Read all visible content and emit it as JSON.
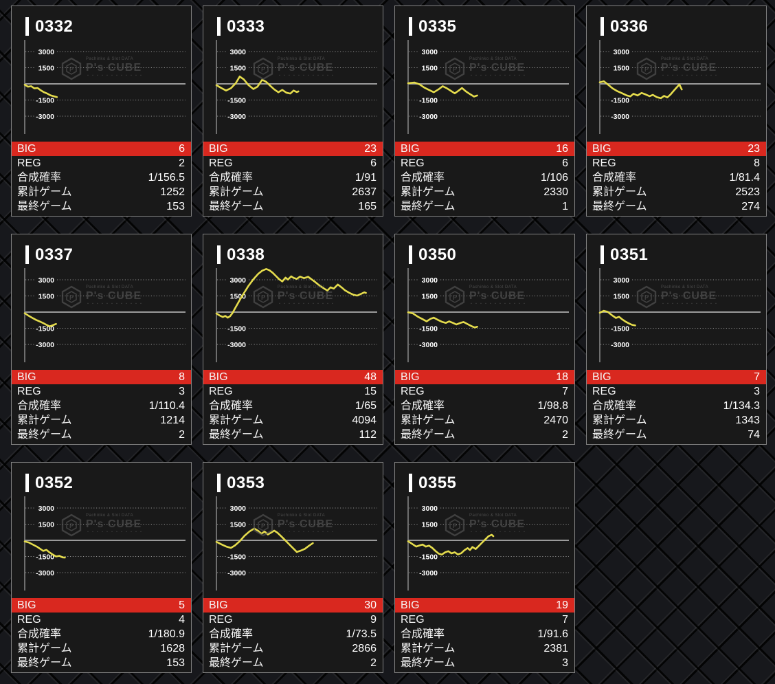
{
  "labels": {
    "big": "BIG",
    "reg": "REG",
    "combined_rate": "合成確率",
    "total_games": "累計ゲーム",
    "last_game": "最終ゲーム"
  },
  "watermark": {
    "tagline": "Pachinko & Slot DATA",
    "brand": "P's CUBE",
    "subline": "・・・・・・・・・・・・"
  },
  "colors": {
    "big_row_red": "#d9281f",
    "graph_line_yellow": "#e5dc4d",
    "grid_gray": "#9a9a9a",
    "axis_gray": "#8b8b8b",
    "card_bg": "#191919"
  },
  "axis": {
    "ticks": [
      3000,
      1500,
      -1500,
      -3000
    ],
    "value_range": [
      -4500,
      4500
    ]
  },
  "machines": [
    {
      "id": "0332",
      "big": 6,
      "reg": 2,
      "combined": "1/156.5",
      "total": 1252,
      "last": 153,
      "series": [
        [
          0,
          -80
        ],
        [
          0.02,
          -260
        ],
        [
          0.04,
          -220
        ],
        [
          0.06,
          -420
        ],
        [
          0.08,
          -380
        ],
        [
          0.1,
          -600
        ],
        [
          0.12,
          -780
        ],
        [
          0.14,
          -900
        ],
        [
          0.16,
          -1060
        ],
        [
          0.18,
          -1150
        ],
        [
          0.2,
          -1230
        ]
      ]
    },
    {
      "id": "0333",
      "big": 23,
      "reg": 6,
      "combined": "1/91",
      "total": 2637,
      "last": 165,
      "series": [
        [
          0,
          -120
        ],
        [
          0.03,
          -380
        ],
        [
          0.06,
          -620
        ],
        [
          0.09,
          -400
        ],
        [
          0.12,
          60
        ],
        [
          0.145,
          680
        ],
        [
          0.17,
          420
        ],
        [
          0.2,
          -120
        ],
        [
          0.23,
          -480
        ],
        [
          0.255,
          -260
        ],
        [
          0.285,
          380
        ],
        [
          0.31,
          180
        ],
        [
          0.335,
          -180
        ],
        [
          0.36,
          -520
        ],
        [
          0.385,
          -780
        ],
        [
          0.41,
          -560
        ],
        [
          0.435,
          -820
        ],
        [
          0.46,
          -900
        ],
        [
          0.48,
          -620
        ],
        [
          0.5,
          -760
        ],
        [
          0.51,
          -700
        ]
      ]
    },
    {
      "id": "0335",
      "big": 16,
      "reg": 6,
      "combined": "1/106",
      "total": 2330,
      "last": 1,
      "series": [
        [
          0,
          60
        ],
        [
          0.04,
          120
        ],
        [
          0.07,
          -40
        ],
        [
          0.1,
          -340
        ],
        [
          0.13,
          -560
        ],
        [
          0.16,
          -780
        ],
        [
          0.19,
          -500
        ],
        [
          0.215,
          -220
        ],
        [
          0.24,
          -400
        ],
        [
          0.265,
          -640
        ],
        [
          0.29,
          -880
        ],
        [
          0.315,
          -620
        ],
        [
          0.335,
          -380
        ],
        [
          0.36,
          -700
        ],
        [
          0.385,
          -950
        ],
        [
          0.41,
          -1180
        ],
        [
          0.43,
          -1080
        ]
      ]
    },
    {
      "id": "0336",
      "big": 23,
      "reg": 8,
      "combined": "1/81.4",
      "total": 2523,
      "last": 274,
      "series": [
        [
          0,
          140
        ],
        [
          0.025,
          240
        ],
        [
          0.05,
          -60
        ],
        [
          0.08,
          -420
        ],
        [
          0.11,
          -680
        ],
        [
          0.14,
          -880
        ],
        [
          0.165,
          -1060
        ],
        [
          0.19,
          -1160
        ],
        [
          0.21,
          -920
        ],
        [
          0.235,
          -1080
        ],
        [
          0.26,
          -840
        ],
        [
          0.285,
          -980
        ],
        [
          0.31,
          -1140
        ],
        [
          0.33,
          -1020
        ],
        [
          0.355,
          -1240
        ],
        [
          0.38,
          -1330
        ],
        [
          0.4,
          -1120
        ],
        [
          0.42,
          -1260
        ],
        [
          0.44,
          -980
        ],
        [
          0.46,
          -640
        ],
        [
          0.48,
          -300
        ],
        [
          0.495,
          -60
        ],
        [
          0.51,
          -520
        ]
      ]
    },
    {
      "id": "0337",
      "big": 8,
      "reg": 3,
      "combined": "1/110.4",
      "total": 1214,
      "last": 2,
      "series": [
        [
          0,
          -100
        ],
        [
          0.02,
          -300
        ],
        [
          0.045,
          -520
        ],
        [
          0.07,
          -720
        ],
        [
          0.095,
          -880
        ],
        [
          0.115,
          -1020
        ],
        [
          0.135,
          -1180
        ],
        [
          0.155,
          -1330
        ],
        [
          0.175,
          -1220
        ],
        [
          0.195,
          -1100
        ]
      ]
    },
    {
      "id": "0338",
      "big": 48,
      "reg": 15,
      "combined": "1/65",
      "total": 4094,
      "last": 112,
      "series": [
        [
          0,
          -120
        ],
        [
          0.02,
          -320
        ],
        [
          0.04,
          -460
        ],
        [
          0.055,
          -360
        ],
        [
          0.07,
          -520
        ],
        [
          0.085,
          -380
        ],
        [
          0.1,
          -80
        ],
        [
          0.125,
          600
        ],
        [
          0.15,
          1250
        ],
        [
          0.175,
          1850
        ],
        [
          0.2,
          2450
        ],
        [
          0.23,
          3050
        ],
        [
          0.26,
          3550
        ],
        [
          0.285,
          3850
        ],
        [
          0.31,
          4000
        ],
        [
          0.33,
          3880
        ],
        [
          0.35,
          3650
        ],
        [
          0.37,
          3350
        ],
        [
          0.39,
          3050
        ],
        [
          0.41,
          2850
        ],
        [
          0.43,
          3200
        ],
        [
          0.445,
          3020
        ],
        [
          0.465,
          3320
        ],
        [
          0.48,
          3180
        ],
        [
          0.5,
          3080
        ],
        [
          0.52,
          3300
        ],
        [
          0.545,
          3150
        ],
        [
          0.57,
          3280
        ],
        [
          0.59,
          3060
        ],
        [
          0.61,
          2850
        ],
        [
          0.63,
          2600
        ],
        [
          0.65,
          2380
        ],
        [
          0.67,
          2180
        ],
        [
          0.69,
          2000
        ],
        [
          0.71,
          2300
        ],
        [
          0.73,
          2180
        ],
        [
          0.755,
          2560
        ],
        [
          0.78,
          2280
        ],
        [
          0.8,
          2020
        ],
        [
          0.825,
          1800
        ],
        [
          0.85,
          1620
        ],
        [
          0.875,
          1530
        ],
        [
          0.9,
          1700
        ],
        [
          0.92,
          1830
        ],
        [
          0.93,
          1780
        ]
      ]
    },
    {
      "id": "0350",
      "big": 18,
      "reg": 7,
      "combined": "1/98.8",
      "total": 2470,
      "last": 2,
      "series": [
        [
          0,
          -20
        ],
        [
          0.03,
          -120
        ],
        [
          0.06,
          -420
        ],
        [
          0.09,
          -660
        ],
        [
          0.115,
          -860
        ],
        [
          0.14,
          -620
        ],
        [
          0.16,
          -520
        ],
        [
          0.185,
          -720
        ],
        [
          0.21,
          -900
        ],
        [
          0.235,
          -1000
        ],
        [
          0.255,
          -860
        ],
        [
          0.28,
          -1010
        ],
        [
          0.3,
          -1150
        ],
        [
          0.325,
          -1010
        ],
        [
          0.345,
          -920
        ],
        [
          0.37,
          -1120
        ],
        [
          0.395,
          -1310
        ],
        [
          0.415,
          -1430
        ],
        [
          0.43,
          -1360
        ]
      ]
    },
    {
      "id": "0351",
      "big": 7,
      "reg": 3,
      "combined": "1/134.3",
      "total": 1343,
      "last": 74,
      "series": [
        [
          0,
          -60
        ],
        [
          0.025,
          120
        ],
        [
          0.05,
          20
        ],
        [
          0.075,
          -280
        ],
        [
          0.1,
          -540
        ],
        [
          0.12,
          -440
        ],
        [
          0.14,
          -680
        ],
        [
          0.16,
          -880
        ],
        [
          0.18,
          -1040
        ],
        [
          0.2,
          -1180
        ],
        [
          0.22,
          -1240
        ]
      ]
    },
    {
      "id": "0352",
      "big": 5,
      "reg": 4,
      "combined": "1/180.9",
      "total": 1628,
      "last": 153,
      "series": [
        [
          0,
          -100
        ],
        [
          0.025,
          -200
        ],
        [
          0.05,
          -390
        ],
        [
          0.075,
          -580
        ],
        [
          0.095,
          -780
        ],
        [
          0.115,
          -980
        ],
        [
          0.135,
          -890
        ],
        [
          0.155,
          -1130
        ],
        [
          0.175,
          -1330
        ],
        [
          0.195,
          -1500
        ],
        [
          0.215,
          -1440
        ],
        [
          0.235,
          -1580
        ],
        [
          0.25,
          -1600
        ]
      ]
    },
    {
      "id": "0353",
      "big": 30,
      "reg": 9,
      "combined": "1/73.5",
      "total": 2866,
      "last": 2,
      "series": [
        [
          0,
          -140
        ],
        [
          0.035,
          -400
        ],
        [
          0.065,
          -600
        ],
        [
          0.09,
          -700
        ],
        [
          0.115,
          -480
        ],
        [
          0.145,
          -80
        ],
        [
          0.175,
          420
        ],
        [
          0.205,
          820
        ],
        [
          0.235,
          1100
        ],
        [
          0.26,
          880
        ],
        [
          0.28,
          620
        ],
        [
          0.3,
          820
        ],
        [
          0.32,
          540
        ],
        [
          0.34,
          720
        ],
        [
          0.36,
          900
        ],
        [
          0.38,
          700
        ],
        [
          0.4,
          420
        ],
        [
          0.42,
          120
        ],
        [
          0.44,
          -180
        ],
        [
          0.46,
          -480
        ],
        [
          0.48,
          -780
        ],
        [
          0.5,
          -1080
        ],
        [
          0.52,
          -980
        ],
        [
          0.55,
          -790
        ],
        [
          0.575,
          -520
        ],
        [
          0.6,
          -260
        ]
      ]
    },
    {
      "id": "0355",
      "big": 19,
      "reg": 7,
      "combined": "1/91.6",
      "total": 2381,
      "last": 3,
      "series": [
        [
          0,
          -90
        ],
        [
          0.025,
          -330
        ],
        [
          0.05,
          -580
        ],
        [
          0.07,
          -480
        ],
        [
          0.09,
          -390
        ],
        [
          0.11,
          -580
        ],
        [
          0.13,
          -490
        ],
        [
          0.15,
          -700
        ],
        [
          0.17,
          -990
        ],
        [
          0.19,
          -1240
        ],
        [
          0.21,
          -1320
        ],
        [
          0.23,
          -1120
        ],
        [
          0.25,
          -1010
        ],
        [
          0.27,
          -1210
        ],
        [
          0.29,
          -1110
        ],
        [
          0.31,
          -1310
        ],
        [
          0.33,
          -1200
        ],
        [
          0.35,
          -920
        ],
        [
          0.37,
          -720
        ],
        [
          0.385,
          -900
        ],
        [
          0.4,
          -620
        ],
        [
          0.42,
          -810
        ],
        [
          0.44,
          -520
        ],
        [
          0.46,
          -220
        ],
        [
          0.48,
          80
        ],
        [
          0.5,
          380
        ],
        [
          0.52,
          520
        ],
        [
          0.53,
          380
        ]
      ]
    }
  ]
}
